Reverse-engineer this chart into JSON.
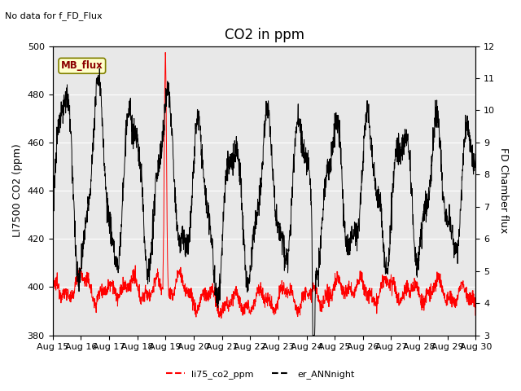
{
  "title": "CO2 in ppm",
  "no_data_text": "No data for f_FD_Flux",
  "mb_flux_label": "MB_flux",
  "ylabel_left": "LI7500 CO2 (ppm)",
  "ylabel_right": "FD Chamber flux",
  "ylim_left": [
    380,
    500
  ],
  "ylim_right": [
    3.0,
    12.0
  ],
  "yticks_left": [
    380,
    400,
    420,
    440,
    460,
    480,
    500
  ],
  "yticks_right": [
    3.0,
    4.0,
    5.0,
    6.0,
    7.0,
    8.0,
    9.0,
    10.0,
    11.0,
    12.0
  ],
  "xtick_labels": [
    "Aug 15",
    "Aug 16",
    "Aug 17",
    "Aug 18",
    "Aug 19",
    "Aug 20",
    "Aug 21",
    "Aug 22",
    "Aug 23",
    "Aug 24",
    "Aug 25",
    "Aug 26",
    "Aug 27",
    "Aug 28",
    "Aug 29",
    "Aug 30"
  ],
  "legend_labels": [
    "li75_co2_ppm",
    "er_ANNnight"
  ],
  "background_color": "#e8e8e8",
  "figure_color": "#ffffff",
  "title_fontsize": 12,
  "label_fontsize": 9,
  "tick_fontsize": 8
}
